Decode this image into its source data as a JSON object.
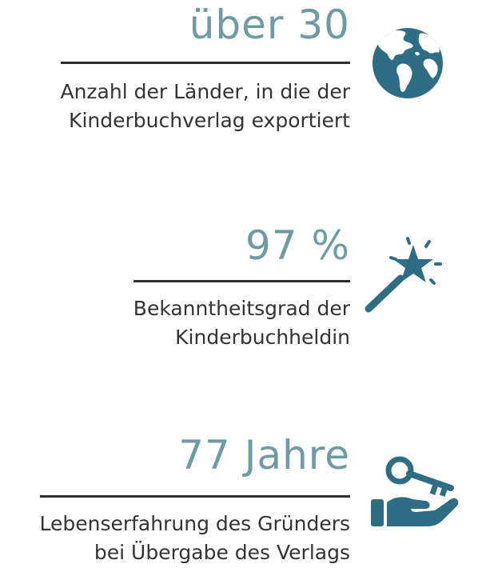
{
  "colors": {
    "value_text": "#6e9aa6",
    "icon": "#2f6d84",
    "rule": "#2f2f2f",
    "description_text": "#333333"
  },
  "stats": [
    {
      "value": "über 30",
      "description_lines": [
        "Anzahl der Länder, in die der",
        "Kinderbuchverlag exportiert"
      ],
      "icon": "globe-icon"
    },
    {
      "value": "97 %",
      "description_lines": [
        "Bekanntheitsgrad der",
        "Kinderbuchheldin"
      ],
      "icon": "magic-wand-icon"
    },
    {
      "value": "77 Jahre",
      "description_lines": [
        "Lebenserfahrung des Gründers",
        "bei Übergabe des Verlags"
      ],
      "icon": "hand-key-icon"
    }
  ]
}
